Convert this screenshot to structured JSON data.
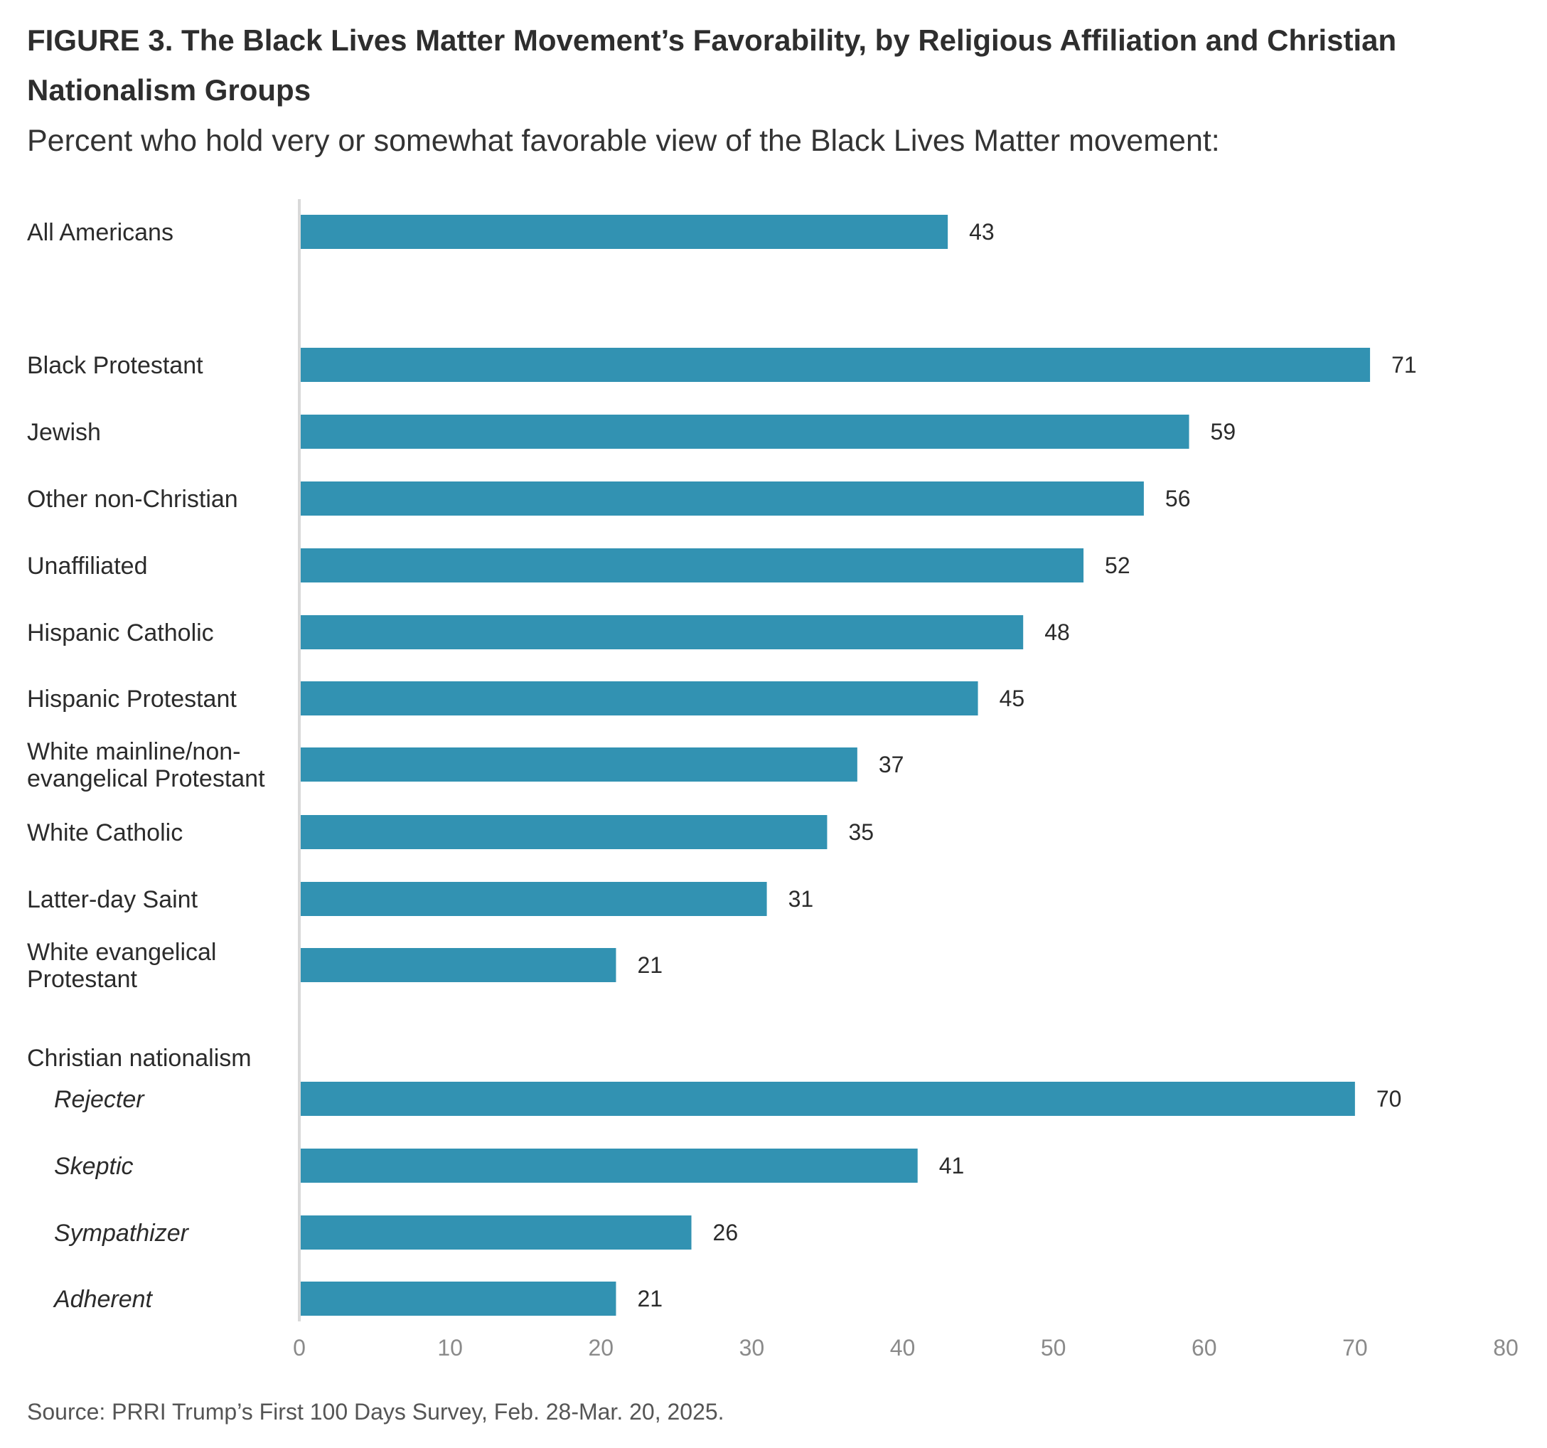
{
  "chart_data": {
    "type": "bar",
    "orientation": "horizontal",
    "title": "FIGURE 3. The Black Lives Matter Movement’s Favorability, by Religious Affiliation and Christian Nationalism Groups",
    "subtitle": "Percent who hold very or somewhat favorable view of the Black Lives Matter movement:",
    "xlim": [
      0,
      80
    ],
    "xticks": [
      "0",
      "10",
      "20",
      "30",
      "40",
      "50",
      "60",
      "70",
      "80"
    ],
    "grid": false,
    "bar_color": "#3292b2",
    "group_heading": "Christian nationalism",
    "categories": [
      {
        "label": [
          "All Americans"
        ],
        "value": 43,
        "italic": false
      },
      {
        "label": [
          "Black Protestant"
        ],
        "value": 71,
        "italic": false
      },
      {
        "label": [
          "Jewish"
        ],
        "value": 59,
        "italic": false
      },
      {
        "label": [
          "Other non-Christian"
        ],
        "value": 56,
        "italic": false
      },
      {
        "label": [
          "Unaffiliated"
        ],
        "value": 52,
        "italic": false
      },
      {
        "label": [
          "Hispanic Catholic"
        ],
        "value": 48,
        "italic": false
      },
      {
        "label": [
          "Hispanic Protestant"
        ],
        "value": 45,
        "italic": false
      },
      {
        "label": [
          "White mainline/non-",
          "evangelical Protestant"
        ],
        "value": 37,
        "italic": false
      },
      {
        "label": [
          "White Catholic"
        ],
        "value": 35,
        "italic": false
      },
      {
        "label": [
          "Latter-day Saint"
        ],
        "value": 31,
        "italic": false
      },
      {
        "label": [
          "White evangelical",
          "Protestant"
        ],
        "value": 21,
        "italic": false
      },
      {
        "label": [
          "Rejecter"
        ],
        "value": 70,
        "italic": true
      },
      {
        "label": [
          "Skeptic"
        ],
        "value": 41,
        "italic": true
      },
      {
        "label": [
          "Sympathizer"
        ],
        "value": 26,
        "italic": true
      },
      {
        "label": [
          "Adherent"
        ],
        "value": 21,
        "italic": true
      }
    ]
  },
  "source": "Source: PRRI Trump’s First 100 Days Survey, Feb. 28-Mar. 20, 2025."
}
